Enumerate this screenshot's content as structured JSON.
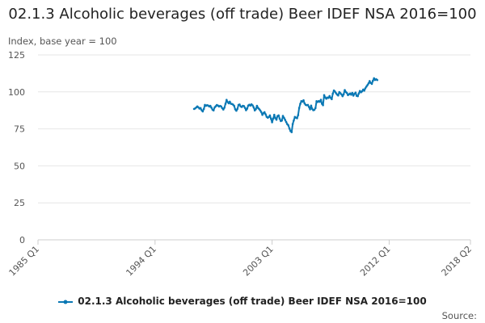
{
  "chart_data": {
    "type": "line",
    "title": "02.1.3 Alcoholic beverages (off trade) Beer IDEF NSA 2016=100",
    "ylabel": "Index, base year = 100",
    "xlabel": "",
    "ylim": [
      0,
      125
    ],
    "yticks": [
      0,
      25,
      50,
      75,
      100,
      125
    ],
    "xticks": [
      "1985 Q1",
      "1994 Q1",
      "2003 Q1",
      "2012 Q1",
      "2018 Q2"
    ],
    "grid": true,
    "legend_position": "bottom",
    "source_label": "Source:",
    "series": [
      {
        "name": "02.1.3 Alcoholic beverages (off trade) Beer IDEF NSA 2016=100",
        "color": "#0a78b4",
        "x_start": "1997-01",
        "frequency": "monthly",
        "values": [
          88.5,
          88.8,
          89.5,
          90.2,
          89.6,
          88.7,
          89.1,
          87.6,
          86.8,
          88.5,
          91.2,
          90.6,
          91.0,
          90.8,
          90.1,
          90.6,
          89.4,
          88.0,
          87.5,
          89.6,
          90.3,
          91.1,
          90.8,
          90.1,
          90.5,
          90.2,
          89.0,
          88.1,
          89.3,
          92.0,
          94.6,
          93.2,
          92.3,
          93.4,
          92.0,
          91.8,
          91.4,
          90.5,
          88.2,
          87.3,
          88.5,
          91.2,
          91.5,
          90.2,
          89.8,
          90.6,
          90.4,
          89.2,
          87.6,
          88.7,
          90.8,
          91.3,
          90.8,
          91.6,
          90.9,
          89.6,
          87.5,
          88.3,
          90.6,
          89.2,
          88.5,
          87.5,
          86.4,
          84.5,
          85.6,
          86.3,
          84.8,
          83.2,
          82.6,
          83.0,
          84.1,
          81.8,
          79.5,
          82.0,
          84.5,
          82.3,
          81.2,
          83.6,
          84.1,
          81.9,
          80.3,
          80.6,
          83.8,
          82.4,
          81.1,
          79.6,
          78.2,
          77.4,
          75.2,
          73.5,
          72.8,
          78.2,
          80.6,
          83.1,
          82.6,
          82.2,
          84.3,
          89.1,
          91.9,
          93.8,
          93.4,
          94.3,
          92.2,
          91.2,
          91.0,
          91.2,
          89.8,
          88.2,
          90.7,
          88.6,
          87.6,
          87.9,
          89.1,
          93.7,
          93.2,
          93.8,
          93.3,
          94.7,
          92.0,
          91.0,
          97.8,
          96.3,
          95.4,
          96.2,
          95.9,
          97.2,
          96.0,
          95.1,
          98.8,
          101.0,
          100.2,
          99.1,
          98.2,
          97.6,
          99.9,
          99.1,
          98.3,
          97.1,
          98.3,
          101.2,
          100.0,
          99.3,
          97.8,
          98.4,
          98.9,
          98.1,
          99.3,
          97.5,
          98.7,
          99.5,
          97.4,
          97.1,
          98.9,
          100.6,
          99.8,
          100.4,
          101.6,
          100.9,
          102.4,
          103.6,
          104.6,
          105.8,
          107.3,
          106.1,
          105.4,
          107.5,
          109.2,
          108.1,
          108.6,
          108.0
        ]
      }
    ]
  }
}
